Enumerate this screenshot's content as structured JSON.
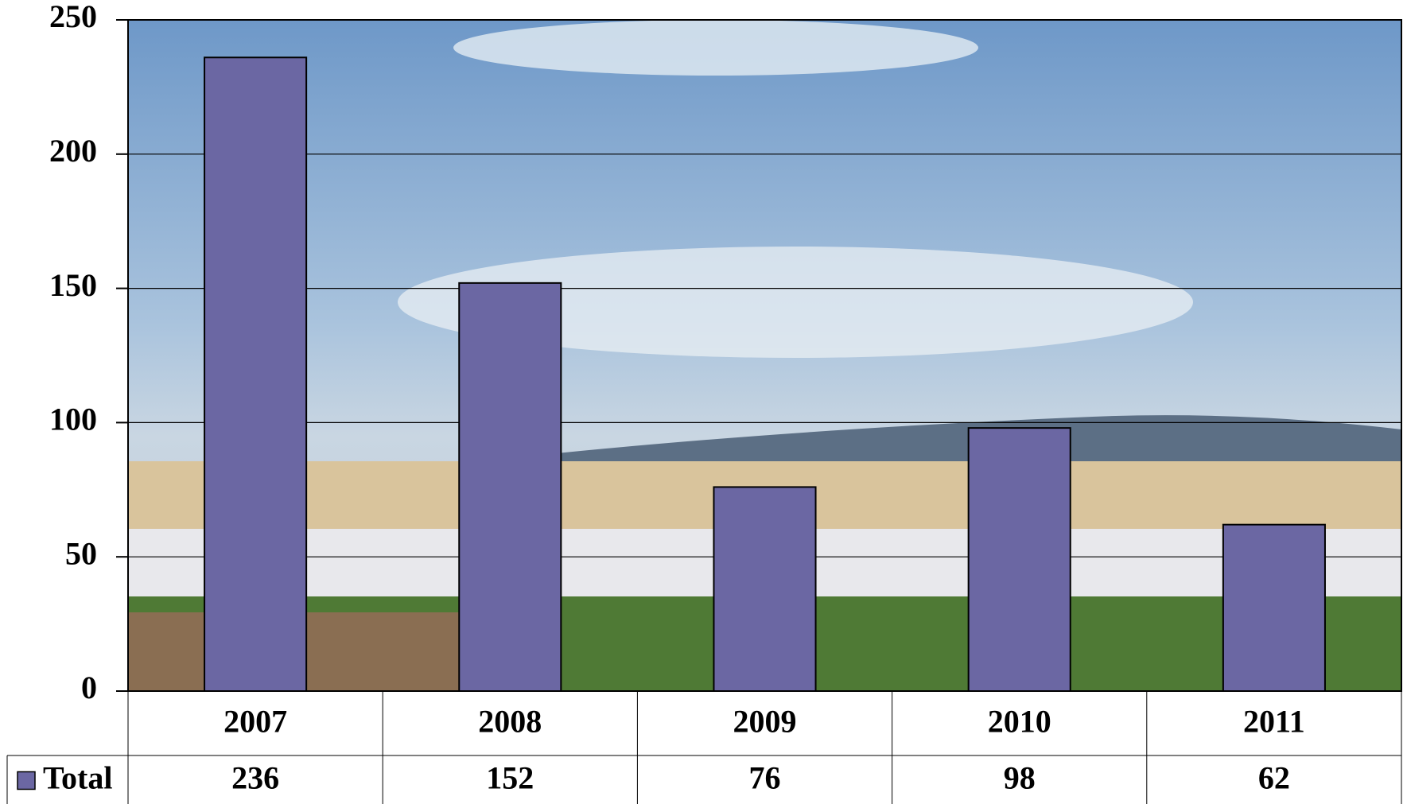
{
  "chart_data": {
    "type": "bar",
    "categories": [
      "2007",
      "2008",
      "2009",
      "2010",
      "2011"
    ],
    "series": [
      {
        "name": "Total",
        "color": "#6b67a3",
        "values": [
          236,
          152,
          76,
          98,
          62
        ]
      }
    ],
    "ylim": [
      0,
      250
    ],
    "yticks": [
      0,
      50,
      100,
      150,
      200,
      250
    ],
    "grid": true
  }
}
